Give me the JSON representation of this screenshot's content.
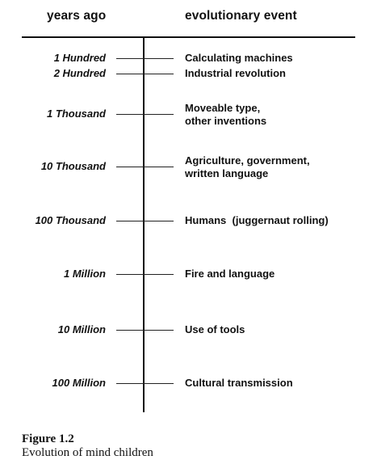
{
  "header": {
    "years_label": "years ago",
    "event_label": "evolutionary event"
  },
  "timeline": [
    {
      "time": "1 Hundred",
      "event_lines": [
        "Calculating machines"
      ]
    },
    {
      "time": "2 Hundred",
      "event_lines": [
        "Industrial revolution"
      ]
    },
    {
      "time": "1 Thousand",
      "event_lines": [
        "Moveable type,",
        "other inventions"
      ]
    },
    {
      "time": "10 Thousand",
      "event_lines": [
        "Agriculture, government,",
        "written language"
      ]
    },
    {
      "time": "100 Thousand",
      "event_lines": [
        "Humans  (juggernaut rolling)"
      ]
    },
    {
      "time": "1 Million",
      "event_lines": [
        "Fire and language"
      ]
    },
    {
      "time": "10 Million",
      "event_lines": [
        "Use of tools"
      ]
    },
    {
      "time": "100 Million",
      "event_lines": [
        "Cultural transmission"
      ]
    }
  ],
  "caption": {
    "label": "Figure 1.2",
    "title": "Evolution of mind children"
  }
}
